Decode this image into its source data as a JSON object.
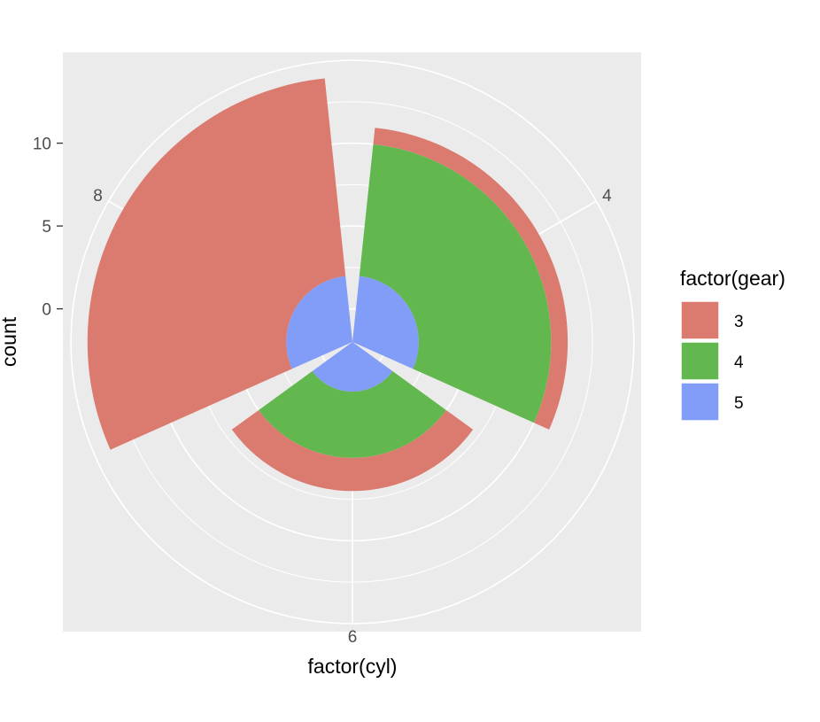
{
  "chart_data": {
    "type": "bar",
    "coord": "polar (stacked bars, theta = category)",
    "categories": [
      "4",
      "6",
      "8"
    ],
    "series": [
      {
        "name": "3",
        "values": [
          1,
          2,
          12
        ],
        "color": "#db7b6f"
      },
      {
        "name": "4",
        "values": [
          8,
          4,
          0
        ],
        "color": "#62b74f"
      },
      {
        "name": "5",
        "values": [
          2,
          1,
          2
        ],
        "color": "#829df7"
      }
    ],
    "xlabel": "factor(cyl)",
    "ylabel": "count",
    "yticks": [
      "0",
      "5",
      "10"
    ],
    "rlim": [
      -2,
      14
    ],
    "legend": {
      "title": "factor(gear)",
      "position": "right"
    },
    "panel_background": "#ebebeb",
    "grid_color": "#ffffff",
    "grid": true
  }
}
